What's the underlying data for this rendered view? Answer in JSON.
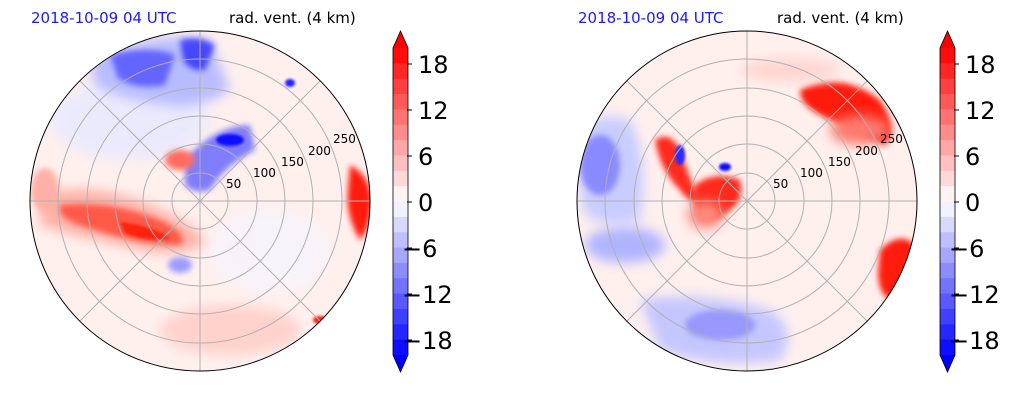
{
  "colors": {
    "title_time": "#1a1aff",
    "positive": "#ff0000",
    "negative": "#0000ff",
    "grid": "#b0b0b0"
  },
  "chart_data": [
    {
      "type": "polar-contourf",
      "title_left": "2018-10-09 04 UTC",
      "title_right": "rad. vent. (4 km)",
      "radial_ticks": [
        "50",
        "100",
        "150",
        "200",
        "250"
      ],
      "colorbar": {
        "ticks": [
          "18",
          "12",
          "6",
          "0",
          "−6",
          "−12",
          "−18"
        ],
        "range": [
          -20,
          20
        ],
        "extend": "both",
        "cmap": "bwr"
      },
      "features": [
        {
          "name": "outflow-west",
          "sign": "positive"
        },
        {
          "name": "outflow-east-edge",
          "sign": "positive"
        },
        {
          "name": "outflow-south",
          "sign": "positive"
        },
        {
          "name": "inflow-north",
          "sign": "negative"
        },
        {
          "name": "inflow-core",
          "sign": "negative"
        }
      ]
    },
    {
      "type": "polar-contourf",
      "title_left": "2018-10-09 04 UTC",
      "title_right": "rad. vent. (4 km)",
      "radial_ticks": [
        "50",
        "100",
        "150",
        "200",
        "250"
      ],
      "colorbar": {
        "ticks": [
          "18",
          "12",
          "6",
          "0",
          "−6",
          "−12",
          "−18"
        ],
        "range": [
          -20,
          20
        ],
        "extend": "both",
        "cmap": "bwr"
      },
      "features": [
        {
          "name": "outflow-northeast",
          "sign": "positive"
        },
        {
          "name": "outflow-core-band",
          "sign": "positive"
        },
        {
          "name": "outflow-east-edge",
          "sign": "positive"
        },
        {
          "name": "inflow-west",
          "sign": "negative"
        },
        {
          "name": "inflow-south",
          "sign": "negative"
        }
      ]
    }
  ]
}
